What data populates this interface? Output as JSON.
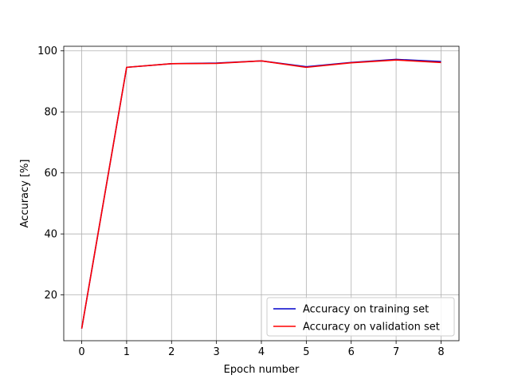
{
  "chart_data": {
    "type": "line",
    "title": "",
    "xlabel": "Epoch number",
    "ylabel": "Accuracy [%]",
    "x": [
      0,
      1,
      2,
      3,
      4,
      5,
      6,
      7,
      8
    ],
    "xlim": [
      -0.4,
      8.4
    ],
    "ylim": [
      5,
      101.5
    ],
    "xticks": [
      0,
      1,
      2,
      3,
      4,
      5,
      6,
      7,
      8
    ],
    "yticks": [
      20,
      40,
      60,
      80,
      100
    ],
    "grid": true,
    "legend_position": "lower-right",
    "series": [
      {
        "name": "Accuracy on training set",
        "color": "#0000cc",
        "values": [
          9.0,
          94.6,
          95.8,
          96.0,
          96.7,
          94.8,
          96.2,
          97.2,
          96.5
        ]
      },
      {
        "name": "Accuracy on validation set",
        "color": "#ff0000",
        "values": [
          9.0,
          94.6,
          95.8,
          95.9,
          96.7,
          94.6,
          96.1,
          97.0,
          96.2
        ]
      }
    ]
  }
}
